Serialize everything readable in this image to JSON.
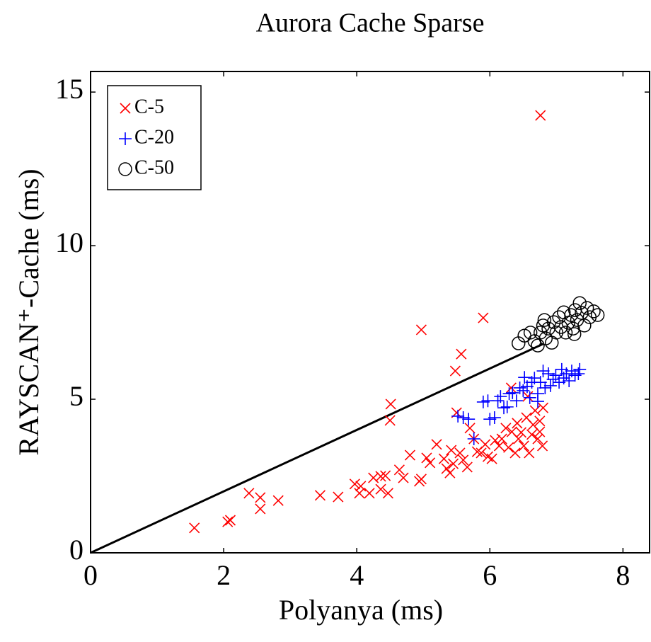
{
  "chart_data": {
    "type": "scatter",
    "title": "Aurora Cache Sparse",
    "x_label": "Polyanya (ms)",
    "y_label": "RAYSCAN⁺-Cache (ms)",
    "xlim": [
      0,
      8.4
    ],
    "ylim": [
      0,
      15.67
    ],
    "xticks": [
      0,
      2,
      4,
      6,
      8
    ],
    "yticks": [
      0,
      5,
      10,
      15
    ],
    "legend": "top-left",
    "reference_line": {
      "color": "#000000",
      "x": [
        0,
        6.8
      ],
      "y": [
        0,
        6.8
      ]
    },
    "series": [
      {
        "name": "C-5",
        "color": "#ff0000",
        "marker": "x",
        "x": [
          1.56,
          2.06,
          2.1,
          2.38,
          2.55,
          2.55,
          2.82,
          3.45,
          3.72,
          3.97,
          4.04,
          4.06,
          4.19,
          4.25,
          4.36,
          4.36,
          4.47,
          4.5,
          4.51,
          4.43,
          4.64,
          4.7,
          4.8,
          4.94,
          4.97,
          4.97,
          5.05,
          5.1,
          5.2,
          5.31,
          5.35,
          5.4,
          5.42,
          5.45,
          5.48,
          5.5,
          5.57,
          5.55,
          5.6,
          5.66,
          5.7,
          5.76,
          5.9,
          5.81,
          5.87,
          5.93,
          5.97,
          6.03,
          6.08,
          6.14,
          6.18,
          6.24,
          6.28,
          6.32,
          6.33,
          6.38,
          6.41,
          6.43,
          6.47,
          6.51,
          6.55,
          6.57,
          6.59,
          6.63,
          6.65,
          6.68,
          6.72,
          6.75,
          6.76,
          6.79,
          6.8,
          6.75
        ],
        "y": [
          0.81,
          1.01,
          1.06,
          1.94,
          1.43,
          1.8,
          1.7,
          1.87,
          1.82,
          2.24,
          1.94,
          2.17,
          1.94,
          2.44,
          2.07,
          2.49,
          1.94,
          4.31,
          4.84,
          2.51,
          2.7,
          2.44,
          3.18,
          2.33,
          2.4,
          7.26,
          3.09,
          2.93,
          3.53,
          3.06,
          2.74,
          2.6,
          3.34,
          2.9,
          5.92,
          4.56,
          6.47,
          3.25,
          3.02,
          2.79,
          4.06,
          3.71,
          7.65,
          3.29,
          3.25,
          3.53,
          3.13,
          3.06,
          3.66,
          3.48,
          3.71,
          4.06,
          3.43,
          5.37,
          3.94,
          3.25,
          4.22,
          3.71,
          3.92,
          3.48,
          4.4,
          5.09,
          3.25,
          3.85,
          4.17,
          4.63,
          3.71,
          4.29,
          14.24,
          3.48,
          4.72,
          3.94
        ]
      },
      {
        "name": "C-20",
        "color": "#0000ff",
        "marker": "+",
        "x": [
          5.52,
          5.6,
          5.68,
          5.76,
          5.9,
          5.97,
          6.0,
          6.07,
          6.12,
          6.16,
          6.21,
          6.26,
          6.29,
          6.34,
          6.4,
          6.45,
          6.5,
          6.56,
          6.6,
          6.63,
          6.67,
          6.72,
          6.76,
          6.8,
          6.83,
          6.88,
          6.91,
          6.95,
          6.99,
          7.04,
          7.08,
          7.11,
          7.15,
          7.19,
          7.23,
          7.28,
          7.33,
          7.35,
          6.72,
          6.52
        ],
        "y": [
          4.45,
          4.4,
          4.35,
          3.71,
          4.91,
          4.95,
          4.35,
          4.4,
          4.95,
          5.09,
          4.72,
          4.75,
          5.18,
          5.21,
          4.95,
          5.37,
          5.28,
          5.41,
          5.05,
          5.55,
          5.69,
          5.18,
          5.55,
          5.92,
          5.37,
          5.83,
          5.44,
          5.65,
          5.78,
          5.55,
          5.97,
          5.69,
          5.83,
          5.6,
          5.92,
          5.78,
          5.83,
          5.97,
          4.93,
          5.71
        ]
      },
      {
        "name": "C-50",
        "color": "#000000",
        "marker": "o",
        "x": [
          6.43,
          6.52,
          6.61,
          6.67,
          6.72,
          6.76,
          6.8,
          6.84,
          6.88,
          6.93,
          6.96,
          7.0,
          7.04,
          7.07,
          7.11,
          7.14,
          7.18,
          7.22,
          7.25,
          7.28,
          7.31,
          7.35,
          7.38,
          7.42,
          7.46,
          7.5,
          7.56,
          7.62,
          6.82,
          7.27
        ],
        "y": [
          6.82,
          7.07,
          7.17,
          6.89,
          6.75,
          7.17,
          7.4,
          6.98,
          7.3,
          6.84,
          7.51,
          7.17,
          7.67,
          7.35,
          7.83,
          7.17,
          7.49,
          7.74,
          7.3,
          7.9,
          7.58,
          8.13,
          7.81,
          7.4,
          7.97,
          7.67,
          7.86,
          7.74,
          7.58,
          7.12
        ]
      }
    ]
  }
}
